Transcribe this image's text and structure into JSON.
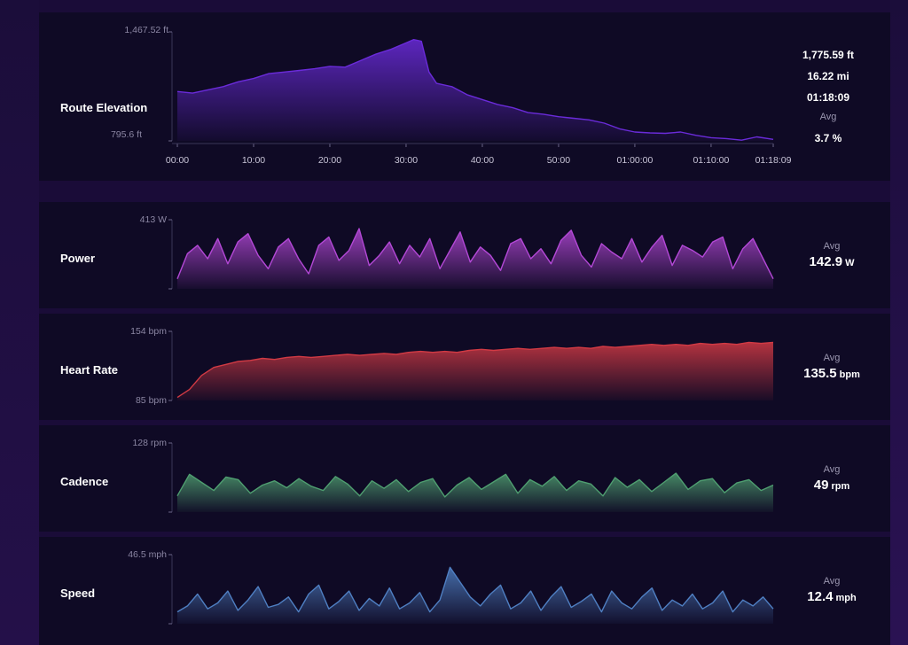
{
  "elevation": {
    "label": "Route Elevation",
    "y_max_label": "1,467.52 ft",
    "y_min_label": "795.6 ft",
    "x_ticks": [
      "00:00",
      "10:00",
      "20:00",
      "30:00",
      "40:00",
      "50:00",
      "01:00:00",
      "01:10:00",
      "01:18:09"
    ],
    "stats": {
      "gain": "1,775.59 ft",
      "distance": "16.22 mi",
      "duration": "01:18:09",
      "avg_label": "Avg",
      "avg_grade": "3.7 %"
    },
    "color": "#6a2bd9"
  },
  "metrics": [
    {
      "key": "power",
      "label": "Power",
      "y_max_label": "413 W",
      "avg_label": "Avg",
      "avg_value": "142.9",
      "avg_unit": "W",
      "color": "#b348d6"
    },
    {
      "key": "heart_rate",
      "label": "Heart Rate",
      "y_max_label": "154 bpm",
      "y_min_label": "85 bpm",
      "avg_label": "Avg",
      "avg_value": "135.5",
      "avg_unit": "bpm",
      "color": "#d13a44"
    },
    {
      "key": "cadence",
      "label": "Cadence",
      "y_max_label": "128 rpm",
      "avg_label": "Avg",
      "avg_value": "49",
      "avg_unit": "rpm",
      "color": "#4f9e70"
    },
    {
      "key": "speed",
      "label": "Speed",
      "y_max_label": "46.5 mph",
      "avg_label": "Avg",
      "avg_value": "12.4",
      "avg_unit": "mph",
      "color": "#4f7fc2"
    }
  ],
  "chart_data": [
    {
      "type": "area",
      "title": "Route Elevation",
      "x_unit": "min",
      "x": [
        0,
        2,
        4,
        6,
        8,
        10,
        12,
        14,
        16,
        18,
        20,
        22,
        24,
        26,
        28,
        30,
        31,
        32,
        33,
        34,
        36,
        38,
        40,
        42,
        44,
        46,
        48,
        50,
        52,
        54,
        56,
        58,
        60,
        62,
        64,
        66,
        68,
        70,
        72,
        74,
        76,
        78.15
      ],
      "y": [
        1100,
        1090,
        1110,
        1130,
        1160,
        1180,
        1210,
        1220,
        1230,
        1240,
        1255,
        1250,
        1290,
        1330,
        1360,
        1400,
        1420,
        1410,
        1220,
        1150,
        1130,
        1080,
        1050,
        1020,
        1000,
        970,
        960,
        945,
        935,
        925,
        905,
        870,
        850,
        845,
        842,
        850,
        830,
        815,
        810,
        800,
        820,
        805
      ],
      "ylim": [
        795.6,
        1467.52
      ]
    },
    {
      "type": "line",
      "title": "Power",
      "ylim": [
        0,
        413
      ],
      "x_unit": "min",
      "values": [
        60,
        210,
        260,
        180,
        300,
        150,
        280,
        330,
        200,
        120,
        250,
        300,
        180,
        90,
        260,
        310,
        170,
        230,
        360,
        140,
        200,
        280,
        150,
        260,
        190,
        300,
        120,
        230,
        340,
        160,
        250,
        200,
        110,
        270,
        300,
        180,
        240,
        150,
        290,
        350,
        200,
        130,
        270,
        220,
        180,
        300,
        160,
        250,
        320,
        140,
        260,
        230,
        190,
        280,
        310,
        120,
        240,
        300,
        180,
        60
      ]
    },
    {
      "type": "area",
      "title": "Heart Rate",
      "ylim": [
        85,
        154
      ],
      "x_unit": "min",
      "values": [
        88,
        96,
        110,
        118,
        121,
        124,
        125,
        127,
        126,
        128,
        129,
        128,
        129,
        130,
        131,
        130,
        131,
        132,
        131,
        133,
        134,
        133,
        134,
        133,
        135,
        136,
        135,
        136,
        137,
        136,
        137,
        138,
        137,
        138,
        137,
        139,
        138,
        139,
        140,
        141,
        140,
        141,
        140,
        142,
        141,
        142,
        141,
        143,
        142,
        143
      ]
    },
    {
      "type": "line",
      "title": "Cadence",
      "ylim": [
        0,
        128
      ],
      "x_unit": "min",
      "values": [
        30,
        70,
        55,
        40,
        65,
        60,
        35,
        50,
        58,
        45,
        62,
        48,
        40,
        66,
        52,
        30,
        58,
        44,
        60,
        38,
        55,
        62,
        28,
        50,
        64,
        42,
        56,
        70,
        35,
        60,
        48,
        66,
        40,
        58,
        52,
        30,
        64,
        46,
        60,
        38,
        55,
        72,
        42,
        58,
        62,
        36,
        54,
        60,
        40,
        50
      ]
    },
    {
      "type": "area",
      "title": "Speed",
      "ylim": [
        0,
        46.5
      ],
      "x_unit": "min",
      "values": [
        8,
        12,
        20,
        10,
        14,
        22,
        9,
        16,
        25,
        11,
        13,
        18,
        8,
        20,
        26,
        10,
        15,
        22,
        9,
        17,
        12,
        24,
        10,
        14,
        21,
        8,
        16,
        38,
        28,
        18,
        12,
        20,
        26,
        10,
        14,
        22,
        9,
        18,
        25,
        11,
        15,
        20,
        8,
        22,
        14,
        10,
        18,
        24,
        9,
        16,
        12,
        20,
        10,
        14,
        22,
        8,
        16,
        12,
        18,
        10
      ]
    }
  ]
}
